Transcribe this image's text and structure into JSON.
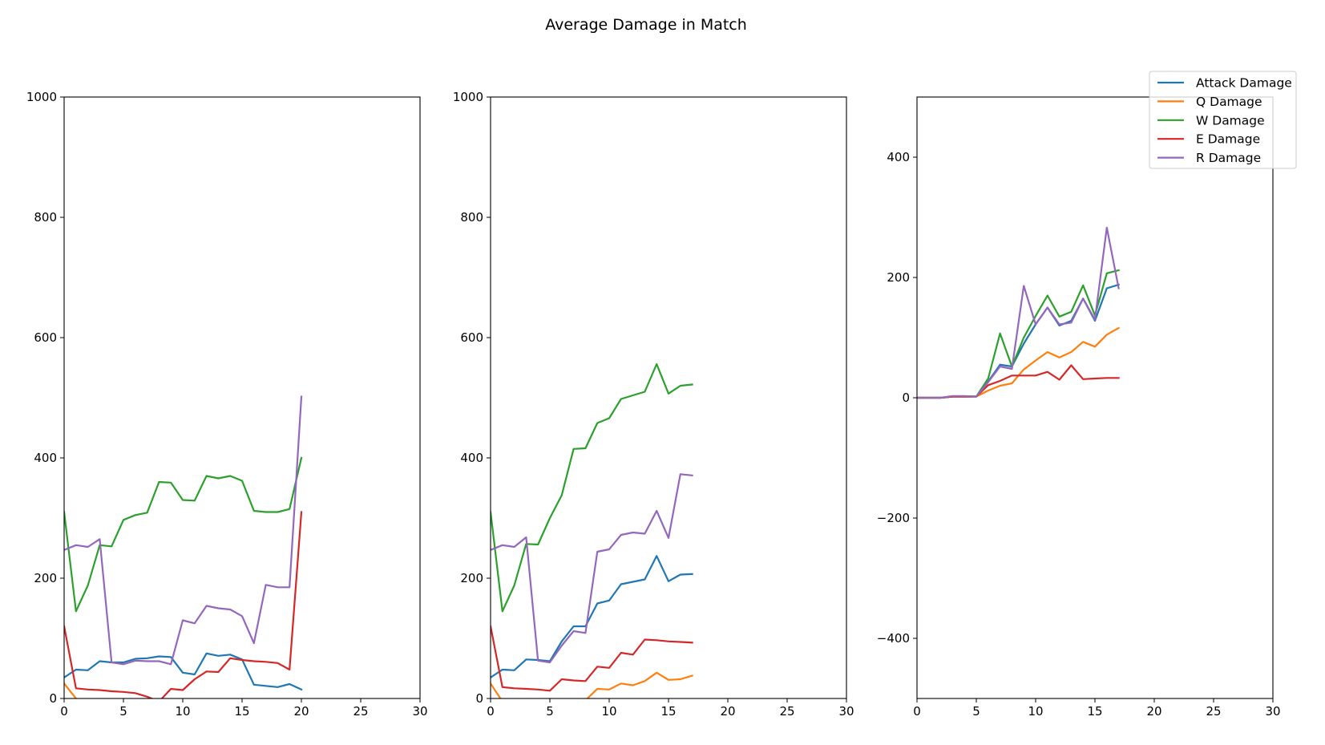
{
  "figure_title": "Average Damage in Match",
  "legend": {
    "placement": "upper-right",
    "entries": [
      {
        "label": "Attack Damage",
        "color": "#1f77b4"
      },
      {
        "label": "Q Damage",
        "color": "#ff7f0e"
      },
      {
        "label": "W Damage",
        "color": "#2ca02c"
      },
      {
        "label": "E Damage",
        "color": "#d62728"
      },
      {
        "label": "R Damage",
        "color": "#9467bd"
      }
    ]
  },
  "chart_data": [
    {
      "type": "line",
      "title": "",
      "xlim": [
        0,
        30
      ],
      "ylim": [
        0,
        1000
      ],
      "xticks": [
        0,
        5,
        10,
        15,
        20,
        25,
        30
      ],
      "yticks": [
        0,
        200,
        400,
        600,
        800,
        1000
      ],
      "grid": false,
      "series": [
        {
          "name": "Attack Damage",
          "color": "#1f77b4",
          "x": [
            0,
            1,
            2,
            3,
            4,
            5,
            6,
            7,
            8,
            9,
            10,
            11,
            12,
            13,
            14,
            15,
            16,
            17,
            18,
            19,
            20
          ],
          "y": [
            35,
            48,
            47,
            62,
            60,
            60,
            66,
            67,
            70,
            69,
            43,
            40,
            75,
            71,
            73,
            65,
            23,
            21,
            19,
            24,
            15
          ]
        },
        {
          "name": "Q Damage",
          "color": "#ff7f0e",
          "x": [
            0,
            1
          ],
          "y": [
            25,
            0
          ]
        },
        {
          "name": "W Damage",
          "color": "#2ca02c",
          "x": [
            0,
            1,
            2,
            3,
            4,
            5,
            6,
            7,
            8,
            9,
            10,
            11,
            12,
            13,
            14,
            15,
            16,
            17,
            18,
            19,
            20
          ],
          "y": [
            310,
            145,
            188,
            255,
            253,
            297,
            305,
            309,
            360,
            359,
            330,
            329,
            370,
            366,
            370,
            362,
            312,
            310,
            310,
            315,
            400
          ]
        },
        {
          "name": "E Damage",
          "color": "#d62728",
          "x": [
            0,
            1,
            2,
            3,
            4,
            5,
            6,
            7,
            8,
            9,
            10,
            11,
            12,
            13,
            14,
            15,
            16,
            17,
            18,
            19,
            20
          ],
          "y": [
            120,
            17,
            15,
            14,
            12,
            11,
            9,
            3,
            -5,
            16,
            14,
            32,
            45,
            44,
            67,
            64,
            62,
            61,
            59,
            48,
            310
          ]
        },
        {
          "name": "R Damage",
          "color": "#9467bd",
          "x": [
            0,
            1,
            2,
            3,
            4,
            5,
            6,
            7,
            8,
            9,
            10,
            11,
            12,
            13,
            14,
            15,
            16,
            17,
            18,
            19,
            20
          ],
          "y": [
            247,
            255,
            252,
            265,
            60,
            57,
            63,
            62,
            62,
            57,
            130,
            125,
            154,
            150,
            148,
            137,
            92,
            189,
            185,
            185,
            502
          ]
        }
      ]
    },
    {
      "type": "line",
      "title": "",
      "xlim": [
        0,
        30
      ],
      "ylim": [
        0,
        1000
      ],
      "xticks": [
        0,
        5,
        10,
        15,
        20,
        25,
        30
      ],
      "yticks": [
        0,
        200,
        400,
        600,
        800,
        1000
      ],
      "grid": false,
      "series": [
        {
          "name": "Attack Damage",
          "color": "#1f77b4",
          "x": [
            0,
            1,
            2,
            3,
            4,
            5,
            6,
            7,
            8,
            9,
            10,
            11,
            12,
            13,
            14,
            15,
            16,
            17
          ],
          "y": [
            35,
            48,
            47,
            65,
            64,
            62,
            95,
            120,
            120,
            158,
            163,
            190,
            194,
            198,
            237,
            195,
            206,
            207
          ]
        },
        {
          "name": "Q Damage",
          "color": "#ff7f0e",
          "x": [
            0,
            1,
            2,
            3,
            4,
            5,
            6,
            7,
            8,
            9,
            10,
            11,
            12,
            13,
            14,
            15,
            16,
            17
          ],
          "y": [
            25,
            -5,
            -5,
            -5,
            -5,
            -5,
            -5,
            -5,
            -3,
            16,
            15,
            25,
            22,
            29,
            43,
            31,
            32,
            38
          ]
        },
        {
          "name": "W Damage",
          "color": "#2ca02c",
          "x": [
            0,
            1,
            2,
            3,
            4,
            5,
            6,
            7,
            8,
            9,
            10,
            11,
            12,
            13,
            14,
            15,
            16,
            17
          ],
          "y": [
            310,
            145,
            188,
            257,
            256,
            300,
            338,
            415,
            416,
            458,
            466,
            498,
            504,
            510,
            556,
            507,
            520,
            522
          ]
        },
        {
          "name": "E Damage",
          "color": "#d62728",
          "x": [
            0,
            1,
            2,
            3,
            4,
            5,
            6,
            7,
            8,
            9,
            10,
            11,
            12,
            13,
            14,
            15,
            16,
            17
          ],
          "y": [
            120,
            19,
            17,
            16,
            15,
            13,
            32,
            30,
            29,
            53,
            51,
            76,
            73,
            98,
            97,
            95,
            94,
            93
          ]
        },
        {
          "name": "R Damage",
          "color": "#9467bd",
          "x": [
            0,
            1,
            2,
            3,
            4,
            5,
            6,
            7,
            8,
            9,
            10,
            11,
            12,
            13,
            14,
            15,
            16,
            17
          ],
          "y": [
            247,
            255,
            252,
            268,
            63,
            60,
            88,
            112,
            109,
            244,
            248,
            272,
            276,
            274,
            312,
            267,
            373,
            371
          ]
        }
      ]
    },
    {
      "type": "line",
      "title": "",
      "xlim": [
        0,
        30
      ],
      "ylim": [
        -500,
        500
      ],
      "xticks": [
        0,
        5,
        10,
        15,
        20,
        25,
        30
      ],
      "yticks": [
        -400,
        -200,
        0,
        200,
        400
      ],
      "grid": false,
      "series": [
        {
          "name": "Attack Damage",
          "color": "#1f77b4",
          "x": [
            0,
            1,
            2,
            3,
            4,
            5,
            6,
            7,
            8,
            9,
            10,
            11,
            12,
            13,
            14,
            15,
            16,
            17
          ],
          "y": [
            0,
            0,
            0,
            2,
            2,
            2,
            27,
            55,
            52,
            90,
            122,
            150,
            120,
            128,
            165,
            128,
            182,
            188
          ]
        },
        {
          "name": "Q Damage",
          "color": "#ff7f0e",
          "x": [
            0,
            1,
            2,
            3,
            4,
            5,
            6,
            7,
            8,
            9,
            10,
            11,
            12,
            13,
            14,
            15,
            16,
            17
          ],
          "y": [
            0,
            0,
            0,
            2,
            2,
            2,
            12,
            20,
            24,
            47,
            62,
            76,
            67,
            76,
            93,
            85,
            105,
            116
          ]
        },
        {
          "name": "W Damage",
          "color": "#2ca02c",
          "x": [
            0,
            1,
            2,
            3,
            4,
            5,
            6,
            7,
            8,
            9,
            10,
            11,
            12,
            13,
            14,
            15,
            16,
            17
          ],
          "y": [
            0,
            0,
            0,
            2,
            2,
            2,
            32,
            107,
            52,
            100,
            136,
            170,
            135,
            143,
            187,
            137,
            207,
            212
          ]
        },
        {
          "name": "E Damage",
          "color": "#d62728",
          "x": [
            0,
            1,
            2,
            3,
            4,
            5,
            6,
            7,
            8,
            9,
            10,
            11,
            12,
            13,
            14,
            15,
            16,
            17
          ],
          "y": [
            0,
            0,
            0,
            2,
            2,
            2,
            21,
            28,
            37,
            37,
            37,
            43,
            30,
            54,
            31,
            32,
            33,
            33
          ]
        },
        {
          "name": "R Damage",
          "color": "#9467bd",
          "x": [
            0,
            1,
            2,
            3,
            4,
            5,
            6,
            7,
            8,
            9,
            10,
            11,
            12,
            13,
            14,
            15,
            16,
            17
          ],
          "y": [
            0,
            0,
            0,
            3,
            3,
            2,
            26,
            52,
            48,
            186,
            122,
            150,
            122,
            125,
            165,
            130,
            283,
            182
          ]
        }
      ]
    }
  ]
}
